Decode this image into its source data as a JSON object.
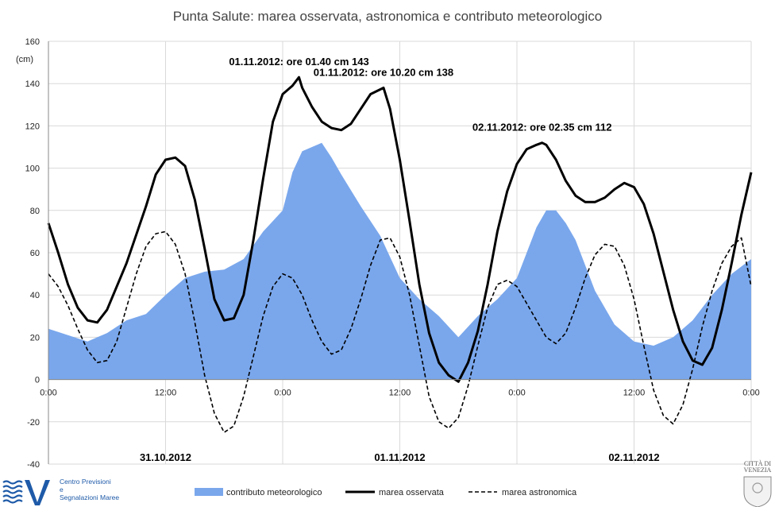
{
  "chart_data": {
    "type": "area",
    "title": "Punta Salute: marea osservata, astronomica e contributo meteorologico",
    "y_unit": "(cm)",
    "ylim": [
      -40,
      160
    ],
    "y_ticks": [
      -40,
      -20,
      0,
      20,
      40,
      60,
      80,
      100,
      120,
      140,
      160
    ],
    "x_unit": "hours",
    "xlim": [
      0,
      72
    ],
    "x_tick_positions": [
      0,
      12,
      24,
      36,
      48,
      60,
      72
    ],
    "x_tick_labels": [
      "0:00",
      "12:00",
      "0:00",
      "12:00",
      "0:00",
      "12:00",
      "0:00"
    ],
    "date_labels": [
      {
        "x": 12,
        "text": "31.10.2012"
      },
      {
        "x": 36,
        "text": "01.11.2012"
      },
      {
        "x": 60,
        "text": "02.11.2012"
      }
    ],
    "annotations": [
      {
        "x": 25.67,
        "y": 143,
        "text": "01.11.2012: ore 01.40 cm 143"
      },
      {
        "x": 34.33,
        "y": 138,
        "text": "01.11.2012: ore 10.20 cm 138"
      },
      {
        "x": 50.58,
        "y": 112,
        "text": "02.11.2012: ore 02.35 cm 112"
      }
    ],
    "series": [
      {
        "name": "contributo meteorologico",
        "style": "area",
        "color": "#7aa7ec",
        "x": [
          0,
          2,
          4,
          6,
          8,
          10,
          12,
          14,
          16,
          18,
          20,
          22,
          23,
          24,
          25,
          26,
          27,
          28,
          29,
          30,
          32,
          34,
          36,
          38,
          40,
          42,
          44,
          46,
          48,
          49,
          50,
          51,
          52,
          53,
          54,
          56,
          58,
          60,
          62,
          64,
          66,
          68,
          70,
          72
        ],
        "y": [
          24,
          21,
          18,
          22,
          28,
          31,
          40,
          48,
          51,
          52,
          57,
          70,
          75,
          80,
          98,
          108,
          110,
          112,
          105,
          97,
          82,
          68,
          48,
          38,
          30,
          20,
          30,
          38,
          48,
          60,
          72,
          80,
          80,
          74,
          66,
          42,
          26,
          18,
          16,
          20,
          28,
          40,
          50,
          57
        ]
      },
      {
        "name": "marea osservata",
        "style": "line-solid",
        "color": "#000000",
        "x": [
          0,
          1,
          2,
          3,
          4,
          5,
          6,
          8,
          10,
          11,
          12,
          13,
          14,
          15,
          16,
          17,
          18,
          19,
          20,
          21,
          22,
          23,
          24,
          25,
          25.67,
          26,
          27,
          28,
          29,
          30,
          31,
          32,
          33,
          34.33,
          35,
          36,
          37,
          38,
          39,
          40,
          41,
          42,
          43,
          44,
          45,
          46,
          47,
          48,
          49,
          50,
          50.58,
          51,
          52,
          53,
          54,
          55,
          56,
          57,
          58,
          59,
          60,
          61,
          62,
          63,
          64,
          65,
          66,
          67,
          68,
          69,
          70,
          71,
          72
        ],
        "y": [
          74,
          60,
          45,
          34,
          28,
          27,
          33,
          55,
          82,
          97,
          104,
          105,
          101,
          85,
          62,
          38,
          28,
          29,
          40,
          66,
          95,
          122,
          135,
          139,
          143,
          138,
          129,
          122,
          119,
          118,
          121,
          128,
          135,
          138,
          128,
          104,
          75,
          45,
          22,
          8,
          2,
          -1,
          8,
          23,
          45,
          70,
          89,
          102,
          109,
          111,
          112,
          111,
          104,
          94,
          87,
          84,
          84,
          86,
          90,
          93,
          91,
          83,
          69,
          51,
          33,
          18,
          9,
          7,
          15,
          33,
          55,
          78,
          98
        ]
      },
      {
        "name": "marea astronomica",
        "style": "line-dashed",
        "color": "#000000",
        "x": [
          0,
          1,
          2,
          3,
          4,
          5,
          6,
          7,
          8,
          9,
          10,
          11,
          12,
          13,
          14,
          15,
          16,
          17,
          18,
          19,
          20,
          21,
          22,
          23,
          24,
          25,
          26,
          27,
          28,
          29,
          30,
          31,
          32,
          33,
          34,
          35,
          36,
          37,
          38,
          39,
          40,
          41,
          42,
          43,
          44,
          45,
          46,
          47,
          48,
          49,
          50,
          51,
          52,
          53,
          54,
          55,
          56,
          57,
          58,
          59,
          60,
          61,
          62,
          63,
          64,
          65,
          66,
          67,
          68,
          69,
          70,
          71,
          72
        ],
        "y": [
          50,
          44,
          35,
          24,
          14,
          8,
          9,
          18,
          34,
          50,
          63,
          69,
          70,
          64,
          50,
          27,
          2,
          -16,
          -25,
          -22,
          -8,
          11,
          30,
          44,
          50,
          48,
          40,
          28,
          18,
          12,
          14,
          24,
          38,
          54,
          66,
          67,
          58,
          40,
          16,
          -8,
          -20,
          -23,
          -18,
          -3,
          16,
          34,
          45,
          47,
          44,
          36,
          28,
          20,
          17,
          22,
          34,
          48,
          59,
          64,
          63,
          54,
          38,
          16,
          -5,
          -17,
          -21,
          -12,
          5,
          25,
          42,
          55,
          63,
          67,
          44
        ]
      }
    ],
    "legend": {
      "placement": "bottom",
      "items": [
        "contributo meteorologico",
        "marea osservata",
        "marea astronomica"
      ]
    }
  },
  "logo": {
    "text_lines": [
      "Centro Previsioni",
      "e",
      "Segnalazioni Maree"
    ],
    "color": "#1e5aa8"
  },
  "crest": {
    "text_lines": [
      "CITTÀ DI",
      "VENEZIA"
    ]
  }
}
